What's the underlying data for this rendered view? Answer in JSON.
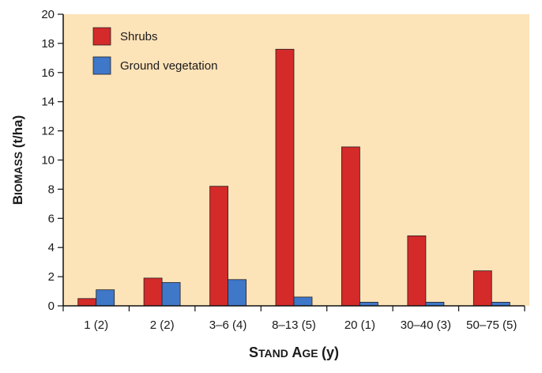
{
  "chart_data": {
    "type": "bar",
    "categories": [
      "1 (2)",
      "2 (2)",
      "3–6 (4)",
      "8–13 (5)",
      "20 (1)",
      "30–40 (3)",
      "50–75 (5)"
    ],
    "series": [
      {
        "name": "Shrubs",
        "color": "#d42a2a",
        "values": [
          0.5,
          1.9,
          8.2,
          17.6,
          10.9,
          4.8,
          2.4
        ]
      },
      {
        "name": "Ground vegetation",
        "color": "#3f77c9",
        "values": [
          1.1,
          1.6,
          1.8,
          0.6,
          0.25,
          0.25,
          0.25
        ]
      }
    ],
    "title": "",
    "xlabel": "Stand Age (y)",
    "ylabel": "Biomass (t/ha)",
    "ylim": [
      0,
      20
    ],
    "yticks": [
      0,
      2,
      4,
      6,
      8,
      10,
      12,
      14,
      16,
      18,
      20
    ],
    "grid": false,
    "legend_position": "top-left",
    "plot_background": "#fde3b8"
  }
}
